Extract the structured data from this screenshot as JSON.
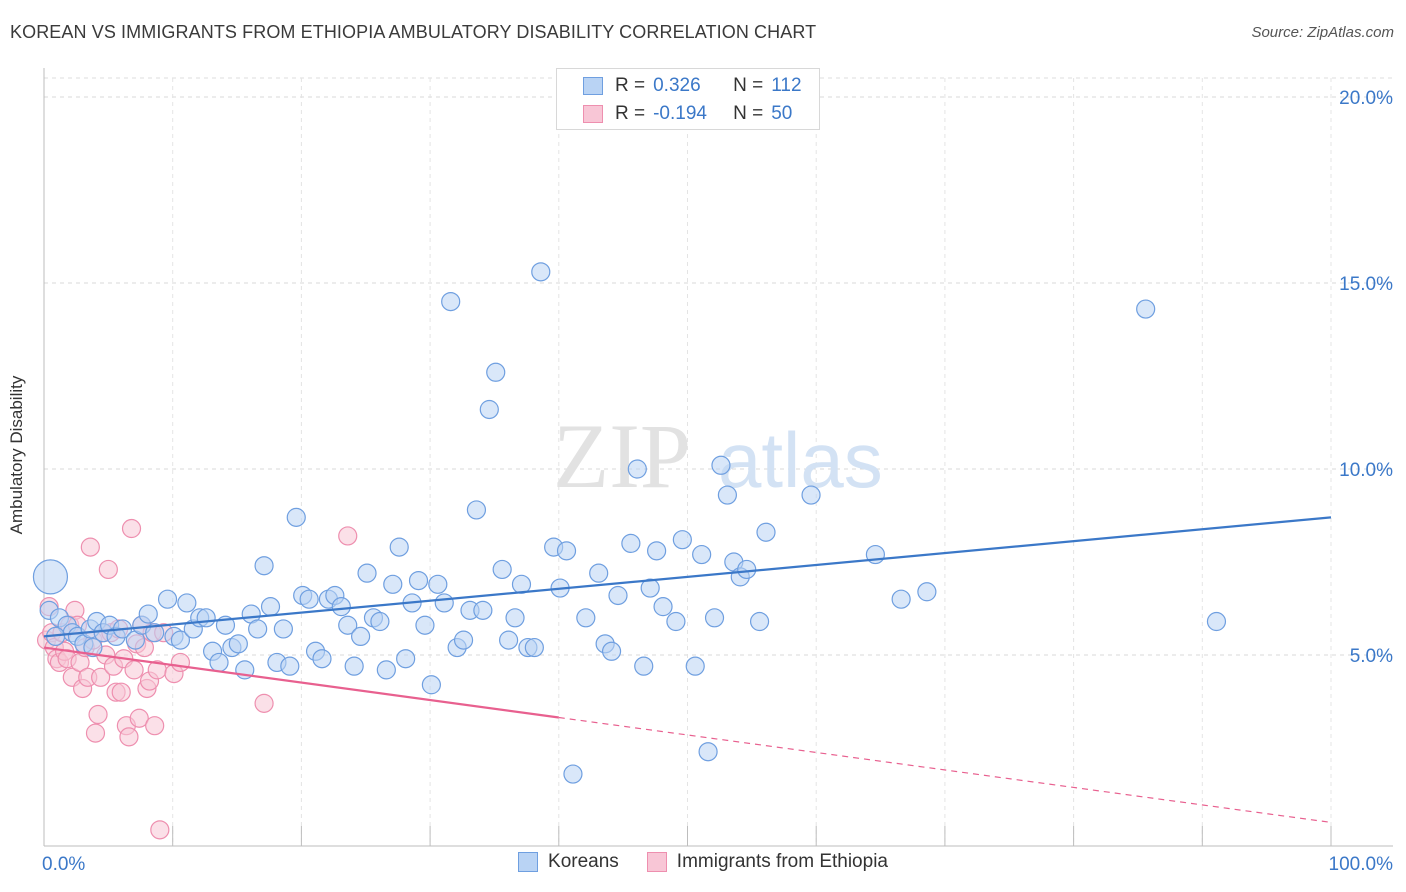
{
  "title": "KOREAN VS IMMIGRANTS FROM ETHIOPIA AMBULATORY DISABILITY CORRELATION CHART",
  "source": "Source: ZipAtlas.com",
  "watermark": {
    "zip": "ZIP",
    "atlas": "atlas"
  },
  "legend": {
    "r_label": "R =",
    "n_label": "N =",
    "series": [
      {
        "name": "Koreans",
        "r": "0.326",
        "n": "112",
        "fill": "#b9d3f4",
        "stroke": "#6f9fe0"
      },
      {
        "name": "Immigrants from Ethiopia",
        "r": "-0.194",
        "n": "50",
        "fill": "#f8c6d6",
        "stroke": "#ee8faf"
      }
    ]
  },
  "chart_data": {
    "type": "scatter",
    "title": "KOREAN VS IMMIGRANTS FROM ETHIOPIA AMBULATORY DISABILITY CORRELATION CHART",
    "xlabel": "",
    "ylabel": "Ambulatory Disability",
    "xlim": [
      0,
      100
    ],
    "ylim": [
      0,
      20.5
    ],
    "x_ticks": [
      "0.0%",
      "100.0%"
    ],
    "y_ticks": [
      {
        "value": 5,
        "label": "5.0%"
      },
      {
        "value": 10,
        "label": "10.0%"
      },
      {
        "value": 15,
        "label": "15.0%"
      },
      {
        "value": 20,
        "label": "20.0%"
      }
    ],
    "grid": true,
    "legend_position": "top-center",
    "colors": {
      "koreans": "#3b78c8",
      "ethiopia": "#e8608f",
      "axis_label": "#3b78c8"
    },
    "series": [
      {
        "name": "Koreans",
        "trend": {
          "x": [
            0,
            100
          ],
          "y": [
            5.5,
            8.7
          ],
          "dashed_from": null
        },
        "points": [
          [
            0.5,
            7.1
          ],
          [
            0.4,
            6.2
          ],
          [
            1.2,
            6.0
          ],
          [
            1.8,
            5.8
          ],
          [
            2.2,
            5.6
          ],
          [
            2.6,
            5.5
          ],
          [
            3.1,
            5.3
          ],
          [
            3.6,
            5.7
          ],
          [
            4.1,
            5.9
          ],
          [
            4.6,
            5.6
          ],
          [
            5.1,
            5.8
          ],
          [
            5.6,
            5.5
          ],
          [
            6.1,
            5.7
          ],
          [
            7.1,
            5.4
          ],
          [
            7.6,
            5.8
          ],
          [
            8.1,
            6.1
          ],
          [
            8.6,
            5.6
          ],
          [
            9.6,
            6.5
          ],
          [
            10.1,
            5.5
          ],
          [
            10.6,
            5.4
          ],
          [
            11.1,
            6.4
          ],
          [
            11.6,
            5.7
          ],
          [
            12.1,
            6.0
          ],
          [
            12.6,
            6.0
          ],
          [
            13.1,
            5.1
          ],
          [
            13.6,
            4.8
          ],
          [
            14.1,
            5.8
          ],
          [
            14.6,
            5.2
          ],
          [
            15.1,
            5.3
          ],
          [
            15.6,
            4.6
          ],
          [
            16.1,
            6.1
          ],
          [
            16.6,
            5.7
          ],
          [
            17.1,
            7.4
          ],
          [
            17.6,
            6.3
          ],
          [
            18.1,
            4.8
          ],
          [
            18.6,
            5.7
          ],
          [
            19.1,
            4.7
          ],
          [
            19.6,
            8.7
          ],
          [
            20.1,
            6.6
          ],
          [
            20.6,
            6.5
          ],
          [
            21.1,
            5.1
          ],
          [
            21.6,
            4.9
          ],
          [
            22.1,
            6.5
          ],
          [
            22.6,
            6.6
          ],
          [
            23.1,
            6.3
          ],
          [
            23.6,
            5.8
          ],
          [
            24.1,
            4.7
          ],
          [
            24.6,
            5.5
          ],
          [
            25.1,
            7.2
          ],
          [
            25.6,
            6.0
          ],
          [
            26.1,
            5.9
          ],
          [
            26.6,
            4.6
          ],
          [
            27.1,
            6.9
          ],
          [
            27.6,
            7.9
          ],
          [
            28.1,
            4.9
          ],
          [
            28.6,
            6.4
          ],
          [
            29.1,
            7.0
          ],
          [
            29.6,
            5.8
          ],
          [
            30.1,
            4.2
          ],
          [
            30.6,
            6.9
          ],
          [
            31.1,
            6.4
          ],
          [
            31.6,
            14.5
          ],
          [
            32.1,
            5.2
          ],
          [
            32.6,
            5.4
          ],
          [
            33.1,
            6.2
          ],
          [
            33.6,
            8.9
          ],
          [
            34.1,
            6.2
          ],
          [
            34.6,
            11.6
          ],
          [
            35.1,
            12.6
          ],
          [
            35.6,
            7.3
          ],
          [
            36.1,
            5.4
          ],
          [
            36.6,
            6.0
          ],
          [
            37.1,
            6.9
          ],
          [
            37.6,
            5.2
          ],
          [
            38.1,
            5.2
          ],
          [
            38.6,
            15.3
          ],
          [
            39.6,
            7.9
          ],
          [
            40.1,
            6.8
          ],
          [
            40.6,
            7.8
          ],
          [
            41.1,
            1.8
          ],
          [
            42.1,
            6.0
          ],
          [
            43.1,
            7.2
          ],
          [
            43.6,
            5.3
          ],
          [
            44.1,
            5.1
          ],
          [
            44.6,
            6.6
          ],
          [
            45.6,
            8.0
          ],
          [
            46.1,
            10.0
          ],
          [
            46.6,
            4.7
          ],
          [
            47.1,
            6.8
          ],
          [
            47.6,
            7.8
          ],
          [
            48.1,
            6.3
          ],
          [
            49.1,
            5.9
          ],
          [
            49.6,
            8.1
          ],
          [
            50.6,
            4.7
          ],
          [
            51.1,
            7.7
          ],
          [
            51.6,
            2.4
          ],
          [
            52.1,
            6.0
          ],
          [
            52.6,
            10.1
          ],
          [
            53.1,
            9.3
          ],
          [
            53.6,
            7.5
          ],
          [
            54.1,
            7.1
          ],
          [
            54.6,
            7.3
          ],
          [
            55.6,
            5.9
          ],
          [
            56.1,
            8.3
          ],
          [
            59.6,
            9.3
          ],
          [
            64.6,
            7.7
          ],
          [
            66.6,
            6.5
          ],
          [
            68.6,
            6.7
          ],
          [
            85.6,
            14.3
          ],
          [
            91.1,
            5.9
          ],
          [
            0.9,
            5.5
          ],
          [
            3.8,
            5.2
          ]
        ]
      },
      {
        "name": "Immigrants from Ethiopia",
        "trend": {
          "x": [
            0,
            100
          ],
          "y": [
            5.2,
            0.5
          ],
          "dashed_from": 40
        },
        "points": [
          [
            0.2,
            5.4
          ],
          [
            0.4,
            6.3
          ],
          [
            0.6,
            5.6
          ],
          [
            0.8,
            5.2
          ],
          [
            1.0,
            4.9
          ],
          [
            1.2,
            4.8
          ],
          [
            1.4,
            5.6
          ],
          [
            1.6,
            5.1
          ],
          [
            1.8,
            4.9
          ],
          [
            2.0,
            5.8
          ],
          [
            2.2,
            4.4
          ],
          [
            2.4,
            6.2
          ],
          [
            2.6,
            5.8
          ],
          [
            2.8,
            4.8
          ],
          [
            3.0,
            4.1
          ],
          [
            3.2,
            5.2
          ],
          [
            3.4,
            4.4
          ],
          [
            3.6,
            7.9
          ],
          [
            3.8,
            5.4
          ],
          [
            4.0,
            2.9
          ],
          [
            4.2,
            3.4
          ],
          [
            4.4,
            4.4
          ],
          [
            4.6,
            5.6
          ],
          [
            4.8,
            5.0
          ],
          [
            5.0,
            7.3
          ],
          [
            5.2,
            5.6
          ],
          [
            5.4,
            4.7
          ],
          [
            5.6,
            4.0
          ],
          [
            5.8,
            5.7
          ],
          [
            6.0,
            4.0
          ],
          [
            6.2,
            4.9
          ],
          [
            6.4,
            3.1
          ],
          [
            6.6,
            2.8
          ],
          [
            6.8,
            8.4
          ],
          [
            7.0,
            4.6
          ],
          [
            7.2,
            5.3
          ],
          [
            7.4,
            3.3
          ],
          [
            7.6,
            5.8
          ],
          [
            7.8,
            5.2
          ],
          [
            8.0,
            4.1
          ],
          [
            8.2,
            4.3
          ],
          [
            8.4,
            5.6
          ],
          [
            8.6,
            3.1
          ],
          [
            8.8,
            4.6
          ],
          [
            9.0,
            0.3
          ],
          [
            9.3,
            5.6
          ],
          [
            10.1,
            4.5
          ],
          [
            10.6,
            4.8
          ],
          [
            17.1,
            3.7
          ],
          [
            23.6,
            8.2
          ]
        ]
      }
    ]
  }
}
